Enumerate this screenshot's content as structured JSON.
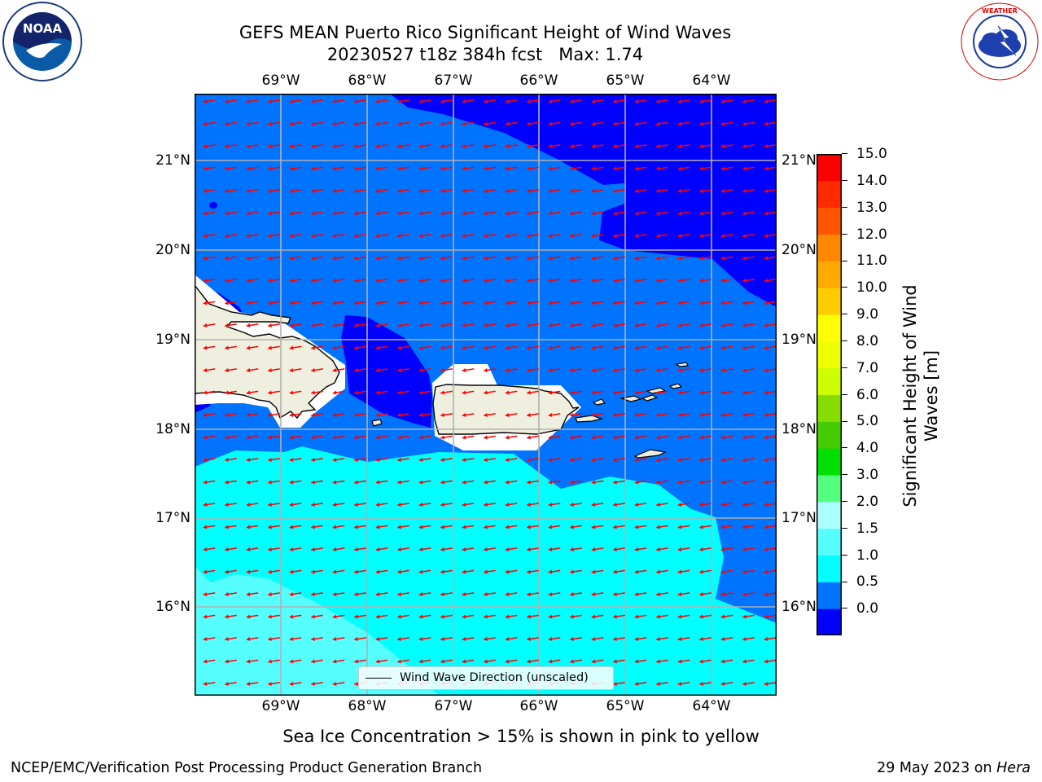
{
  "header": {
    "title_line1": "GEFS MEAN Puerto Rico Significant Height of Wind Waves",
    "title_line2": "20230527 t18z 384h fcst   Max: 1.74"
  },
  "logos": {
    "noaa_text": "NOAA",
    "noaa_ring_text": "NATIONAL OCEANIC AND ATMOSPHERIC ADMINISTRATION • U.S. DEPARTMENT OF COMMERCE",
    "nws_ring_text": "NATIONAL WEATHER SERVICE"
  },
  "map": {
    "lon_ticks": [
      "69°W",
      "68°W",
      "67°W",
      "66°W",
      "65°W",
      "64°W"
    ],
    "lat_ticks": [
      "21°N",
      "20°N",
      "19°N",
      "18°N",
      "17°N",
      "16°N"
    ],
    "extent": {
      "lon_min": -69.97,
      "lon_max": -63.43,
      "lat_min": 15.0,
      "lat_max": 21.75
    },
    "wave_direction_deg_from": 75,
    "legend_label": "Wind Wave Direction (unscaled)",
    "colors": {
      "ocean_low": "#0000ff",
      "ocean_mid": "#0073ff",
      "ocean_high": "#00ffff",
      "ocean_top": "#55ffff",
      "land": "#efefdf",
      "arrow": "#ff0000",
      "grid": "#b0b0b0"
    }
  },
  "colorbar": {
    "ticks": [
      "15.0",
      "14.0",
      "13.0",
      "12.0",
      "11.0",
      "10.0",
      "9.0",
      "8.0",
      "7.0",
      "6.0",
      "5.0",
      "4.0",
      "3.0",
      "2.0",
      "1.5",
      "1.0",
      "0.5",
      "0.0"
    ],
    "colors_bottom_to_top": [
      "#0000ff",
      "#0073ff",
      "#00ffff",
      "#55ffff",
      "#aaffff",
      "#55ff80",
      "#00e000",
      "#44cc00",
      "#88dd00",
      "#ccff00",
      "#eeff00",
      "#ffff00",
      "#ffcc00",
      "#ffaa00",
      "#ff8800",
      "#ff5500",
      "#ff2a00",
      "#ff0000"
    ],
    "label": "Significant Height of Wind Waves [m]"
  },
  "note": "Sea Ice Concentration > 15% is shown in pink to yellow",
  "footer": {
    "left": "NCEP/EMC/Verification Post Processing Product Generation Branch",
    "right_date": "29 May 2023 on ",
    "right_host": "Hera"
  }
}
